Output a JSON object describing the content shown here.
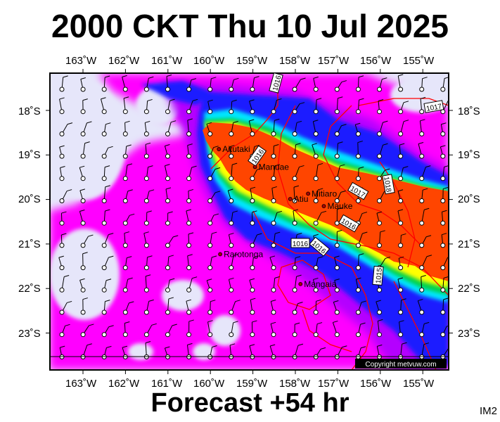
{
  "header": {
    "title": "2000 CKT Thu 10 Jul 2025"
  },
  "footer": {
    "forecast": "Forecast +54 hr",
    "code": "IM2"
  },
  "copyright": "Copyright metvuw.com",
  "colors": {
    "land_bg": "#e6e6fa",
    "magenta": "#ff00ff",
    "purple": "#b400ff",
    "blue": "#1e1eff",
    "cyan": "#00e6ff",
    "green": "#00d24b",
    "yellow": "#ffff00",
    "orange_red": "#ff4500",
    "isobar": "#ff0000"
  },
  "axes": {
    "lon_labels": [
      "163˚W",
      "162˚W",
      "161˚W",
      "160˚W",
      "159˚W",
      "158˚W",
      "157˚W",
      "156˚W",
      "155˚W"
    ],
    "lat_labels": [
      "18˚S",
      "19˚S",
      "20˚S",
      "21˚S",
      "22˚S",
      "23˚S"
    ]
  },
  "places": [
    {
      "name": "Aitutaki",
      "lon": -159.8,
      "lat": -18.87
    },
    {
      "name": "Manuae",
      "lon": -158.95,
      "lat": -19.27
    },
    {
      "name": "Atiu",
      "lon": -158.12,
      "lat": -19.99
    },
    {
      "name": "Mitiaro",
      "lon": -157.7,
      "lat": -19.87
    },
    {
      "name": "Mauke",
      "lon": -157.33,
      "lat": -20.15
    },
    {
      "name": "Rarotonga",
      "lon": -159.77,
      "lat": -21.23
    },
    {
      "name": "Mangaia",
      "lon": -157.88,
      "lat": -21.9
    }
  ],
  "isobar_labels": [
    "1016",
    "1016",
    "1017",
    "1018",
    "1017",
    "1016",
    "1016",
    "1016",
    "1015"
  ]
}
